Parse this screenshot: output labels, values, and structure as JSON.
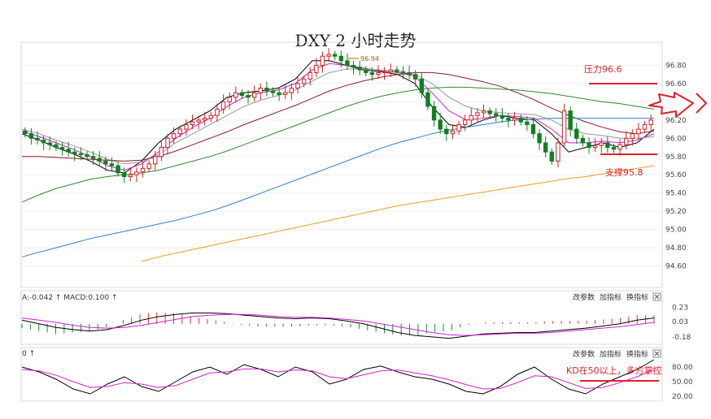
{
  "title": "DXY 2 小时走势",
  "chart_data": {
    "type": "candlestick",
    "title": "DXY 2 小时走势",
    "main": {
      "ylim": [
        94.4,
        97.0
      ],
      "yticks": [
        "96.80",
        "96.60",
        "96.40",
        "96.20",
        "96.00",
        "95.80",
        "95.60",
        "95.40",
        "95.20",
        "95.00",
        "94.80",
        "94.60"
      ],
      "ytick_values": [
        96.8,
        96.6,
        96.4,
        96.2,
        96.0,
        95.8,
        95.6,
        95.4,
        95.2,
        95.0,
        94.8,
        94.6
      ],
      "high_label": "96.94",
      "resistance": {
        "label": "压力96.6",
        "value": 96.6
      },
      "support": {
        "label": "支撑95.8",
        "value": 95.8
      },
      "closes": [
        96.05,
        96.0,
        95.98,
        95.95,
        95.93,
        95.9,
        95.88,
        95.85,
        95.83,
        95.82,
        95.8,
        95.78,
        95.75,
        95.72,
        95.7,
        95.62,
        95.58,
        95.6,
        95.63,
        95.67,
        95.72,
        95.8,
        95.9,
        96.0,
        96.05,
        96.1,
        96.15,
        96.18,
        96.2,
        96.22,
        96.25,
        96.32,
        96.4,
        96.45,
        96.5,
        96.47,
        96.45,
        96.5,
        96.55,
        96.52,
        96.5,
        96.48,
        96.5,
        96.55,
        96.6,
        96.65,
        96.72,
        96.8,
        96.9,
        96.92,
        96.9,
        96.85,
        96.8,
        96.78,
        96.75,
        96.72,
        96.7,
        96.72,
        96.73,
        96.75,
        96.73,
        96.72,
        96.7,
        96.65,
        96.5,
        96.35,
        96.2,
        96.1,
        96.05,
        96.08,
        96.15,
        96.2,
        96.25,
        96.28,
        96.3,
        96.27,
        96.25,
        96.22,
        96.2,
        96.22,
        96.18,
        96.15,
        96.05,
        95.95,
        95.85,
        95.75,
        95.95,
        96.3,
        96.1,
        96.0,
        95.95,
        95.9,
        95.92,
        95.95,
        95.9,
        95.88,
        95.93,
        96.0,
        96.05,
        96.1,
        96.15,
        96.2
      ],
      "ma_series": [
        {
          "color": "#000000",
          "values": [
            96.05,
            95.98,
            95.9,
            95.83,
            95.75,
            95.65,
            95.62,
            95.75,
            95.95,
            96.1,
            96.2,
            96.3,
            96.45,
            96.5,
            96.52,
            96.55,
            96.65,
            96.85,
            96.85,
            96.8,
            96.75,
            96.73,
            96.7,
            96.6,
            96.35,
            96.15,
            96.12,
            96.2,
            96.25,
            96.22,
            96.2,
            96.05,
            95.85,
            95.9,
            95.95,
            95.9,
            95.95,
            96.1
          ]
        },
        {
          "color": "#d020d0",
          "values": [
            96.08,
            96.02,
            95.95,
            95.88,
            95.8,
            95.7,
            95.65,
            95.72,
            95.85,
            96.0,
            96.12,
            96.22,
            96.35,
            96.45,
            96.5,
            96.53,
            96.6,
            96.75,
            96.82,
            96.8,
            96.77,
            96.74,
            96.72,
            96.68,
            96.5,
            96.3,
            96.2,
            96.22,
            96.25,
            96.24,
            96.22,
            96.1,
            95.95,
            95.95,
            95.97,
            95.95,
            95.98,
            96.05
          ]
        },
        {
          "color": "#999999",
          "values": [
            96.1,
            96.05,
            95.98,
            95.92,
            95.85,
            95.77,
            95.72,
            95.74,
            95.82,
            95.95,
            96.05,
            96.15,
            96.25,
            96.35,
            96.42,
            96.47,
            96.53,
            96.63,
            96.72,
            96.76,
            96.76,
            96.75,
            96.73,
            96.7,
            96.6,
            96.45,
            96.35,
            96.3,
            96.28,
            96.27,
            96.26,
            96.2,
            96.1,
            96.05,
            96.03,
            96.0,
            96.0,
            96.02
          ]
        },
        {
          "color": "#8b1a2b",
          "values": [
            95.8,
            95.8,
            95.79,
            95.78,
            95.77,
            95.76,
            95.75,
            95.76,
            95.8,
            95.86,
            95.93,
            96.0,
            96.07,
            96.15,
            96.22,
            96.29,
            96.36,
            96.44,
            96.52,
            96.58,
            96.63,
            96.67,
            96.7,
            96.72,
            96.72,
            96.7,
            96.66,
            96.62,
            96.57,
            96.5,
            96.42,
            96.33,
            96.25,
            96.18,
            96.12,
            96.07,
            96.05,
            96.08
          ]
        },
        {
          "color": "#2e8b2e",
          "values": [
            95.3,
            95.38,
            95.45,
            95.5,
            95.55,
            95.58,
            95.6,
            95.62,
            95.65,
            95.7,
            95.75,
            95.8,
            95.86,
            95.93,
            96.0,
            96.07,
            96.14,
            96.21,
            96.28,
            96.35,
            96.41,
            96.46,
            96.5,
            96.53,
            96.55,
            96.56,
            96.56,
            96.55,
            96.54,
            96.53,
            96.51,
            96.49,
            96.46,
            96.43,
            96.4,
            96.38,
            96.35,
            96.32
          ]
        },
        {
          "color": "#2d7fd0",
          "values": [
            94.7,
            94.75,
            94.8,
            94.85,
            94.9,
            94.94,
            94.98,
            95.02,
            95.06,
            95.1,
            95.15,
            95.2,
            95.26,
            95.33,
            95.4,
            95.47,
            95.54,
            95.61,
            95.68,
            95.75,
            95.82,
            95.89,
            95.95,
            96.0,
            96.05,
            96.09,
            96.12,
            96.15,
            96.18,
            96.2,
            96.21,
            96.22,
            96.22,
            96.22,
            96.22,
            96.22,
            96.22,
            96.22
          ]
        },
        {
          "color": "#e8a020",
          "start": 7,
          "values": [
            94.65,
            94.7,
            94.74,
            94.78,
            94.82,
            94.86,
            94.9,
            94.94,
            94.98,
            95.02,
            95.06,
            95.1,
            95.14,
            95.18,
            95.22,
            95.26,
            95.29,
            95.32,
            95.35,
            95.38,
            95.41,
            95.44,
            95.47,
            95.5,
            95.53,
            95.56,
            95.58,
            95.61,
            95.64,
            95.67,
            95.7
          ]
        }
      ]
    },
    "macd": {
      "label": "A:-0.042 ↑ MACD:0.100 ↑",
      "yticks": [
        "0.23",
        "0.03",
        "-0.18"
      ],
      "ytick_values": [
        0.23,
        0.03,
        -0.18
      ],
      "ylim": [
        -0.26,
        0.3
      ],
      "dif": [
        0.05,
        0.0,
        -0.05,
        -0.08,
        -0.1,
        -0.08,
        -0.02,
        0.05,
        0.1,
        0.13,
        0.15,
        0.15,
        0.14,
        0.12,
        0.1,
        0.08,
        0.07,
        0.08,
        0.07,
        0.04,
        0.0,
        -0.06,
        -0.12,
        -0.16,
        -0.18,
        -0.2,
        -0.17,
        -0.14,
        -0.13,
        -0.12,
        -0.12,
        -0.1,
        -0.08,
        -0.06,
        -0.03,
        0.0,
        0.05,
        0.08
      ],
      "dea": [
        0.08,
        0.05,
        0.02,
        -0.02,
        -0.05,
        -0.06,
        -0.05,
        -0.02,
        0.02,
        0.06,
        0.1,
        0.12,
        0.13,
        0.13,
        0.12,
        0.1,
        0.09,
        0.09,
        0.08,
        0.06,
        0.04,
        0.0,
        -0.04,
        -0.08,
        -0.12,
        -0.15,
        -0.16,
        -0.15,
        -0.14,
        -0.13,
        -0.13,
        -0.12,
        -0.1,
        -0.08,
        -0.06,
        -0.04,
        -0.01,
        0.02
      ],
      "controls": [
        "改参数",
        "加指标",
        "换指标"
      ]
    },
    "kd": {
      "label": "0 ↑",
      "yticks": [
        "80.00",
        "50.00",
        "20.00"
      ],
      "ytick_values": [
        80,
        50,
        20
      ],
      "ylim": [
        10,
        100
      ],
      "k": [
        80,
        70,
        55,
        35,
        25,
        45,
        60,
        40,
        30,
        50,
        70,
        80,
        65,
        85,
        75,
        60,
        80,
        70,
        45,
        55,
        75,
        82,
        70,
        60,
        55,
        45,
        30,
        25,
        40,
        65,
        80,
        55,
        35,
        25,
        45,
        60,
        75,
        95
      ],
      "d": [
        75,
        72,
        63,
        50,
        38,
        40,
        48,
        45,
        38,
        42,
        55,
        68,
        70,
        76,
        76,
        70,
        74,
        72,
        60,
        56,
        64,
        72,
        74,
        68,
        62,
        54,
        44,
        35,
        36,
        48,
        62,
        60,
        48,
        36,
        38,
        48,
        60,
        75
      ],
      "annotation": "KD在50以上，多方掌控",
      "controls": [
        "改参数",
        "加指标",
        "换指标"
      ]
    }
  }
}
